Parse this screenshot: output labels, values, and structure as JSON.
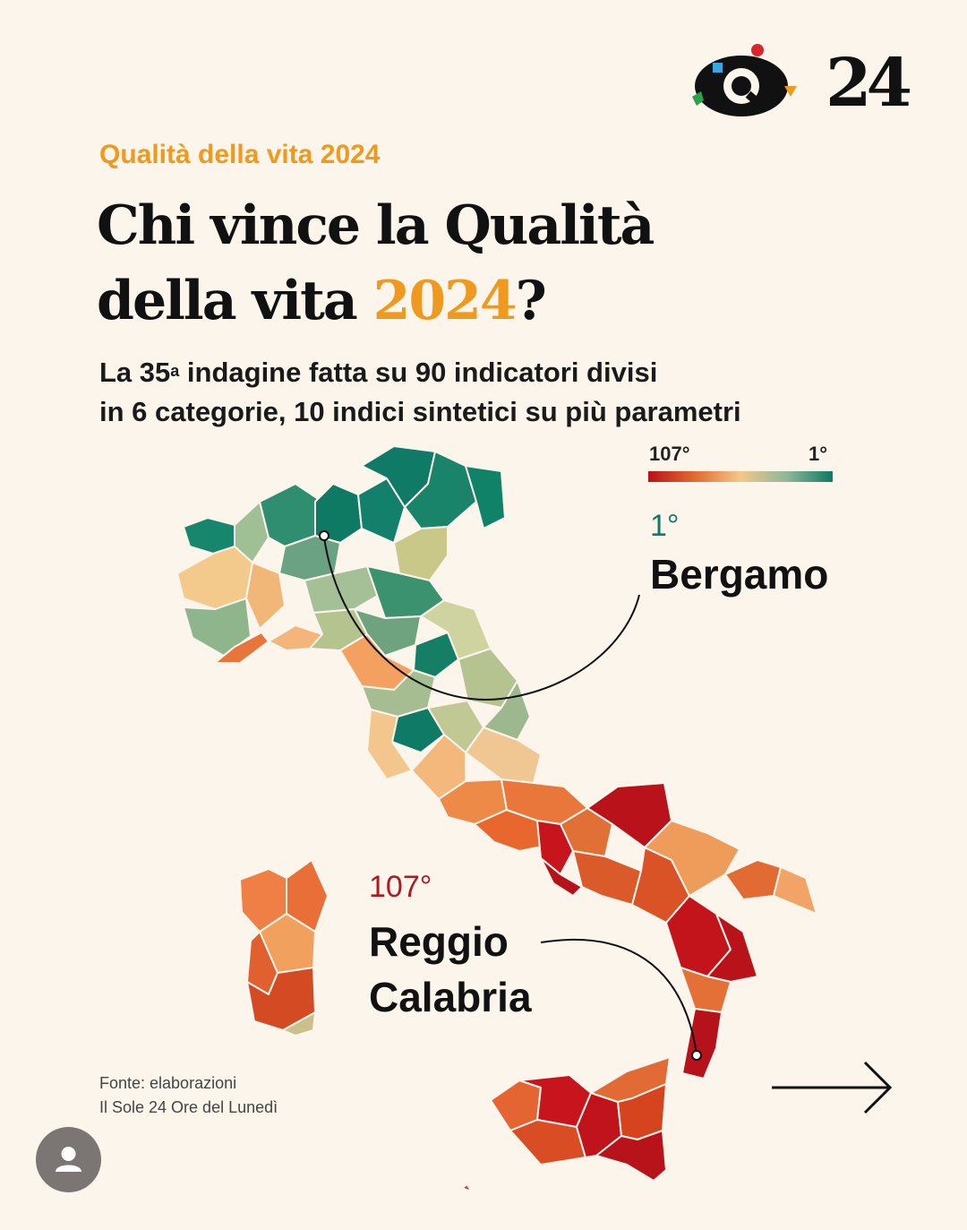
{
  "header": {
    "kicker": "Qualità della vita 2024",
    "title_line1": "Chi vince la Qualità",
    "title_line2_prefix": "della vita ",
    "title_year": "2024",
    "title_suffix": "?",
    "subtitle_line1_a": "La 35",
    "subtitle_line1_sup": "a",
    "subtitle_line1_b": " indagine fatta su 90 indicatori divisi",
    "subtitle_line2": "in 6 categorie, 10 indici sintetici su più parametri"
  },
  "brand": {
    "number": "24",
    "logo_icon": "eye-q-logo-icon"
  },
  "legend": {
    "low_label": "107°",
    "high_label": "1°",
    "colors": [
      "#b8121a",
      "#e06a30",
      "#f3c889",
      "#8fb79a",
      "#0e7a63"
    ]
  },
  "highlights": {
    "top": {
      "rank": "1°",
      "name": "Bergamo",
      "color": "#0f7a66"
    },
    "bottom": {
      "rank": "107°",
      "name_line1": "Reggio",
      "name_line2": "Calabria",
      "color": "#b0191d"
    }
  },
  "source": {
    "line1": "Fonte: elaborazioni",
    "line2": "Il Sole 24 Ore del Lunedì"
  },
  "nav": {
    "next_icon": "arrow-right-icon",
    "avatar_icon": "user-avatar-icon"
  },
  "palette": {
    "background": "#fbf5ec",
    "accent": "#ef9a1f"
  }
}
